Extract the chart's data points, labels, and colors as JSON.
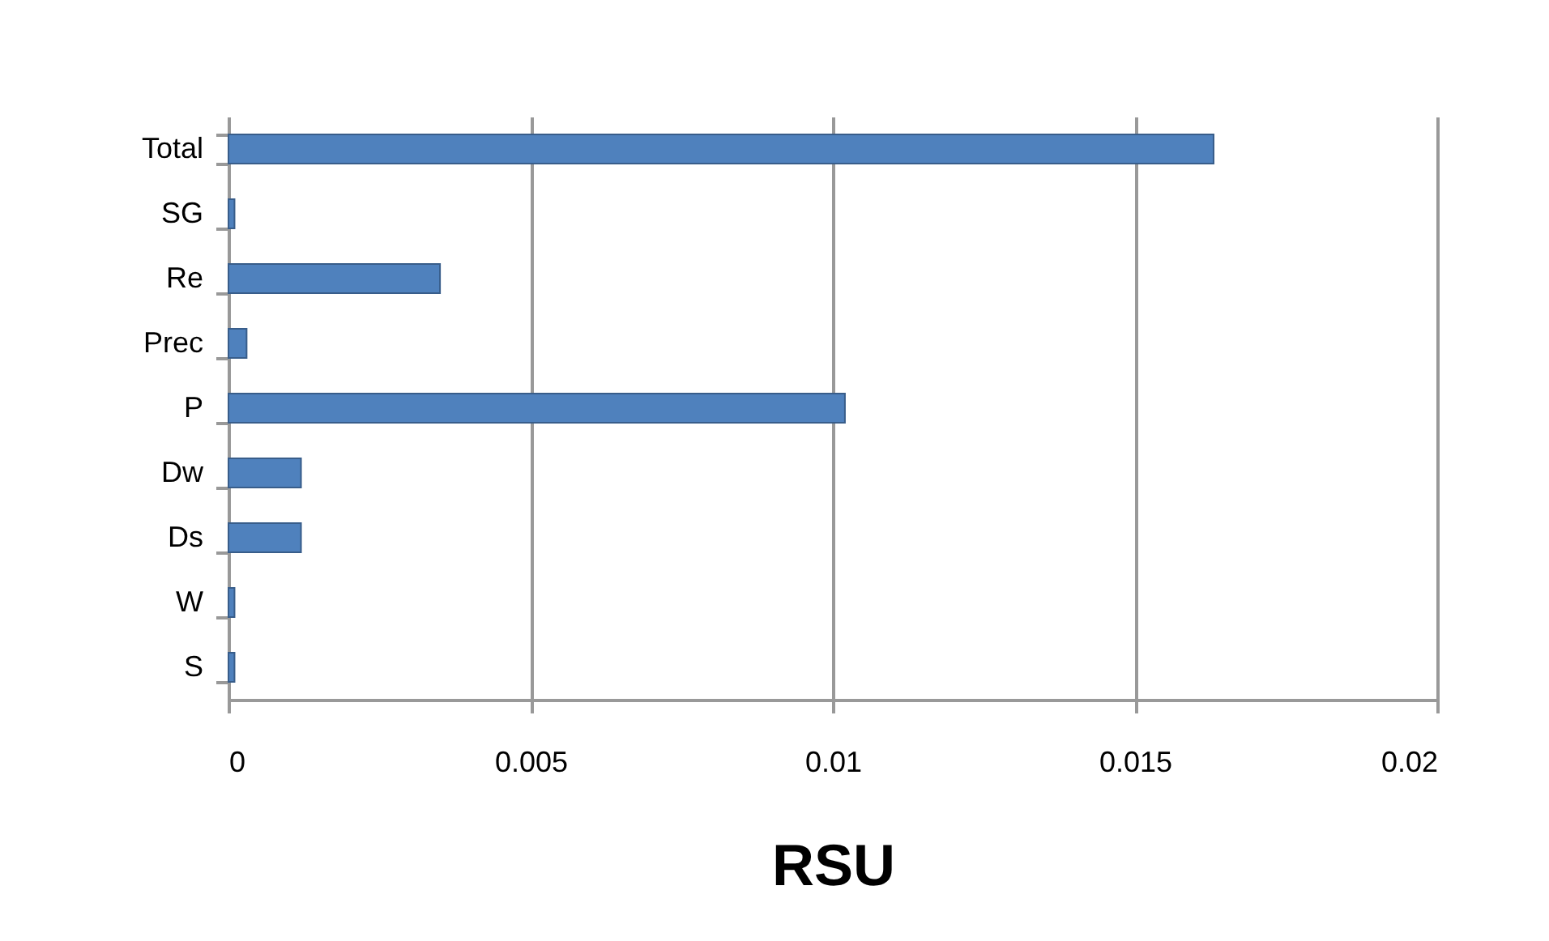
{
  "chart_data": {
    "type": "bar",
    "orientation": "horizontal",
    "xlabel": "RSU",
    "categories": [
      "Total",
      "SG",
      "Re",
      "Prec",
      "P",
      "Dw",
      "Ds",
      "W",
      "S"
    ],
    "values": [
      0.0163,
      0.0001,
      0.0035,
      0.0003,
      0.0102,
      0.0012,
      0.0012,
      0.0001,
      0.0001
    ],
    "color": "#4f81bd",
    "xlim": [
      0,
      0.02
    ],
    "xticks": [
      0,
      0.005,
      0.01,
      0.015,
      0.02
    ],
    "grid": "x"
  }
}
